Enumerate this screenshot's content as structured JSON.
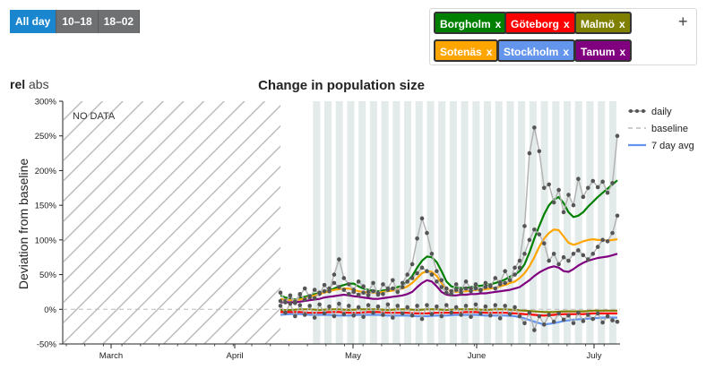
{
  "time_filters": {
    "buttons": [
      {
        "label": "All day",
        "active": true
      },
      {
        "label": "10–18",
        "active": false
      },
      {
        "label": "18–02",
        "active": false
      }
    ]
  },
  "locations": {
    "tags": [
      {
        "label": "Borgholm",
        "remove": "x",
        "color": "#008000"
      },
      {
        "label": "Göteborg",
        "remove": "x",
        "color": "#ff0000"
      },
      {
        "label": "Malmö",
        "remove": "x",
        "color": "#808000"
      },
      {
        "label": "Sotenäs",
        "remove": "x",
        "color": "#ffa500"
      },
      {
        "label": "Stockholm",
        "remove": "x",
        "color": "#6495ed"
      },
      {
        "label": "Tanum",
        "remove": "x",
        "color": "#800080"
      }
    ],
    "add_icon": "+"
  },
  "mode_toggle": {
    "rel": "rel",
    "abs": "abs"
  },
  "chart_data": {
    "type": "line",
    "title": "Change in population size",
    "ylabel": "Deviation from baseline",
    "xlabel": "",
    "ylim": [
      -50,
      300
    ],
    "yticks": [
      "-50%",
      "0%",
      "50%",
      "100%",
      "150%",
      "200%",
      "250%",
      "300%"
    ],
    "x_ticks": [
      "March",
      "April",
      "May",
      "June",
      "July"
    ],
    "no_data_label": "NO DATA",
    "legend": {
      "daily": "daily",
      "baseline": "baseline",
      "avg": "7 day avg"
    },
    "series": [
      {
        "name": "Borgholm",
        "color": "#008000",
        "x": [
          0,
          3,
          6,
          9,
          12,
          15,
          18,
          21,
          24,
          27,
          30,
          33,
          36,
          39,
          42,
          45,
          48,
          51,
          54,
          57,
          60,
          63,
          66,
          69,
          72,
          75,
          78,
          81,
          84,
          87,
          90,
          93,
          96,
          99,
          102,
          105,
          108,
          111,
          114,
          117,
          120,
          123,
          126,
          129,
          132,
          135,
          138,
          141,
          144,
          147,
          150,
          153,
          156,
          159,
          162,
          165,
          168,
          171,
          174,
          177,
          180,
          183,
          186,
          189,
          192,
          195,
          198,
          201,
          204,
          207
        ],
        "values": [
          20,
          17,
          15,
          14,
          16,
          18,
          20,
          22,
          23,
          25,
          27,
          30,
          33,
          35,
          37,
          37,
          33,
          30,
          28,
          27,
          26,
          27,
          28,
          30,
          32,
          34,
          40,
          48,
          60,
          70,
          76,
          75,
          68,
          55,
          40,
          33,
          31,
          31,
          31,
          32,
          33,
          34,
          35,
          36,
          38,
          40,
          43,
          47,
          50,
          55,
          65,
          82,
          102,
          120,
          137,
          150,
          158,
          162,
          153,
          140,
          133,
          135,
          140,
          148,
          155,
          162,
          168,
          174,
          180,
          186
        ]
      },
      {
        "name": "Sotenäs",
        "color": "#ffa500",
        "x": [
          0,
          3,
          6,
          9,
          12,
          15,
          18,
          21,
          24,
          27,
          30,
          33,
          36,
          39,
          42,
          45,
          48,
          51,
          54,
          57,
          60,
          63,
          66,
          69,
          72,
          75,
          78,
          81,
          84,
          87,
          90,
          93,
          96,
          99,
          102,
          105,
          108,
          111,
          114,
          117,
          120,
          123,
          126,
          129,
          132,
          135,
          138,
          141,
          144,
          147,
          150,
          153,
          156,
          159,
          162,
          165,
          168,
          171,
          174,
          177,
          180,
          183,
          186,
          189,
          192,
          195,
          198,
          201,
          204,
          207
        ],
        "values": [
          15,
          14,
          13,
          13,
          14,
          16,
          18,
          20,
          22,
          24,
          26,
          28,
          29,
          30,
          30,
          28,
          26,
          25,
          24,
          24,
          24,
          25,
          26,
          27,
          28,
          30,
          33,
          38,
          45,
          52,
          55,
          54,
          48,
          38,
          30,
          26,
          25,
          26,
          26,
          27,
          28,
          28,
          29,
          30,
          31,
          33,
          35,
          38,
          40,
          45,
          52,
          62,
          75,
          90,
          102,
          110,
          115,
          114,
          105,
          96,
          93,
          95,
          98,
          100,
          101,
          100,
          100,
          99,
          100,
          101
        ]
      },
      {
        "name": "Tanum",
        "color": "#800080",
        "x": [
          0,
          3,
          6,
          9,
          12,
          15,
          18,
          21,
          24,
          27,
          30,
          33,
          36,
          39,
          42,
          45,
          48,
          51,
          54,
          57,
          60,
          63,
          66,
          69,
          72,
          75,
          78,
          81,
          84,
          87,
          90,
          93,
          96,
          99,
          102,
          105,
          108,
          111,
          114,
          117,
          120,
          123,
          126,
          129,
          132,
          135,
          138,
          141,
          144,
          147,
          150,
          153,
          156,
          159,
          162,
          165,
          168,
          171,
          174,
          177,
          180,
          183,
          186,
          189,
          192,
          195,
          198,
          201,
          204,
          207
        ],
        "values": [
          10,
          10,
          10,
          10,
          11,
          12,
          13,
          14,
          15,
          17,
          18,
          19,
          20,
          21,
          20,
          19,
          18,
          17,
          16,
          15,
          15,
          16,
          17,
          18,
          19,
          20,
          22,
          25,
          32,
          38,
          42,
          40,
          33,
          25,
          21,
          20,
          20,
          21,
          21,
          22,
          22,
          23,
          23,
          24,
          25,
          26,
          27,
          28,
          30,
          32,
          37,
          42,
          48,
          53,
          57,
          60,
          62,
          60,
          55,
          54,
          58,
          63,
          67,
          70,
          72,
          74,
          75,
          76,
          78,
          80
        ]
      },
      {
        "name": "Malmö",
        "color": "#808000",
        "x": [
          0,
          6,
          12,
          18,
          24,
          30,
          36,
          42,
          48,
          54,
          60,
          66,
          72,
          78,
          84,
          90,
          96,
          102,
          108,
          114,
          120,
          126,
          132,
          138,
          144,
          150,
          156,
          162,
          168,
          174,
          180,
          186,
          192,
          198,
          204,
          207
        ],
        "values": [
          -1,
          -1,
          0,
          0,
          -1,
          0,
          0,
          -1,
          0,
          0,
          0,
          -1,
          0,
          0,
          -1,
          0,
          0,
          -1,
          0,
          0,
          0,
          -1,
          0,
          0,
          -1,
          -2,
          -3,
          -4,
          -4,
          -3,
          -3,
          -3,
          -2,
          -2,
          -2,
          -2
        ]
      },
      {
        "name": "Göteborg",
        "color": "#ff0000",
        "x": [
          0,
          6,
          12,
          18,
          24,
          30,
          36,
          42,
          48,
          54,
          60,
          66,
          72,
          78,
          84,
          90,
          96,
          102,
          108,
          114,
          120,
          126,
          132,
          138,
          144,
          150,
          156,
          162,
          168,
          174,
          180,
          186,
          192,
          198,
          204,
          207
        ],
        "values": [
          -4,
          -4,
          -4,
          -5,
          -5,
          -4,
          -4,
          -5,
          -5,
          -4,
          -4,
          -5,
          -5,
          -5,
          -6,
          -6,
          -5,
          -5,
          -5,
          -4,
          -4,
          -5,
          -5,
          -5,
          -6,
          -7,
          -8,
          -9,
          -8,
          -7,
          -7,
          -7,
          -6,
          -6,
          -6,
          -6
        ]
      },
      {
        "name": "Stockholm",
        "color": "#6495ed",
        "x": [
          0,
          6,
          12,
          18,
          24,
          30,
          36,
          42,
          48,
          54,
          60,
          66,
          72,
          78,
          84,
          90,
          96,
          102,
          108,
          114,
          120,
          126,
          132,
          138,
          144,
          150,
          156,
          162,
          168,
          174,
          180,
          186,
          192,
          198,
          204,
          207
        ],
        "values": [
          -8,
          -7,
          -7,
          -8,
          -8,
          -8,
          -9,
          -9,
          -8,
          -8,
          -8,
          -9,
          -9,
          -9,
          -10,
          -10,
          -9,
          -9,
          -8,
          -8,
          -8,
          -9,
          -9,
          -9,
          -10,
          -13,
          -18,
          -22,
          -20,
          -17,
          -15,
          -14,
          -13,
          -12,
          -12,
          -12
        ]
      },
      {
        "name": "daily",
        "color": "#555555",
        "x": [
          0,
          3,
          6,
          9,
          12,
          15,
          18,
          21,
          24,
          27,
          30,
          33,
          36,
          39,
          42,
          45,
          48,
          51,
          54,
          57,
          60,
          63,
          66,
          69,
          72,
          75,
          78,
          81,
          84,
          87,
          90,
          93,
          96,
          99,
          102,
          105,
          108,
          111,
          114,
          117,
          120,
          123,
          126,
          129,
          132,
          135,
          138,
          141,
          144,
          147,
          150,
          153,
          156,
          159,
          162,
          165,
          168,
          171,
          174,
          177,
          180,
          183,
          186,
          189,
          192,
          195,
          198,
          201,
          204,
          207
        ],
        "values": [
          24,
          12,
          18,
          9,
          20,
          30,
          17,
          28,
          22,
          35,
          26,
          50,
          72,
          45,
          36,
          28,
          40,
          33,
          25,
          38,
          21,
          36,
          30,
          42,
          25,
          38,
          50,
          65,
          102,
          131,
          110,
          80,
          55,
          42,
          30,
          26,
          36,
          28,
          40,
          30,
          36,
          27,
          38,
          33,
          45,
          39,
          55,
          42,
          60,
          70,
          120,
          225,
          262,
          228,
          175,
          180,
          154,
          172,
          140,
          165,
          150,
          188,
          162,
          175,
          185,
          176,
          184,
          168,
          182,
          250
        ]
      },
      {
        "name": "daily",
        "color": "#555555",
        "x": [
          0,
          3,
          6,
          9,
          12,
          15,
          18,
          21,
          24,
          27,
          30,
          33,
          36,
          39,
          42,
          45,
          48,
          51,
          54,
          57,
          60,
          63,
          66,
          69,
          72,
          75,
          78,
          81,
          84,
          87,
          90,
          93,
          96,
          99,
          102,
          105,
          108,
          111,
          114,
          117,
          120,
          123,
          126,
          129,
          132,
          135,
          138,
          141,
          144,
          147,
          150,
          153,
          156,
          159,
          162,
          165,
          168,
          171,
          174,
          177,
          180,
          183,
          186,
          189,
          192,
          195,
          198,
          201,
          204,
          207
        ],
        "values": [
          5,
          -5,
          8,
          -10,
          6,
          -8,
          5,
          -12,
          7,
          -6,
          4,
          -10,
          8,
          -7,
          5,
          -9,
          3,
          -11,
          6,
          -5,
          4,
          -8,
          7,
          -12,
          5,
          -6,
          3,
          -9,
          5,
          -14,
          6,
          -7,
          4,
          -10,
          6,
          -5,
          3,
          -8,
          5,
          -11,
          7,
          -6,
          4,
          -9,
          6,
          -13,
          5,
          -7,
          3,
          -10,
          -20,
          -5,
          -30,
          -10,
          -22,
          -8,
          -18,
          -6,
          -15,
          -9,
          -20,
          -5,
          -17,
          -8,
          -14,
          -6,
          -19,
          -10,
          -16,
          -18
        ]
      },
      {
        "name": "daily",
        "color": "#555555",
        "x": [
          0,
          3,
          6,
          9,
          12,
          15,
          18,
          21,
          24,
          27,
          30,
          33,
          36,
          39,
          42,
          45,
          48,
          51,
          54,
          57,
          60,
          63,
          66,
          69,
          72,
          75,
          78,
          81,
          84,
          87,
          90,
          93,
          96,
          99,
          102,
          105,
          108,
          111,
          114,
          117,
          120,
          123,
          126,
          129,
          132,
          135,
          138,
          141,
          144,
          147,
          150,
          153,
          156,
          159,
          162,
          165,
          168,
          171,
          174,
          177,
          180,
          183,
          186,
          189,
          192,
          195,
          198,
          201,
          204,
          207
        ],
        "values": [
          12,
          10,
          20,
          11,
          22,
          14,
          19,
          16,
          24,
          26,
          30,
          38,
          32,
          28,
          22,
          25,
          21,
          24,
          20,
          26,
          23,
          22,
          28,
          30,
          25,
          32,
          40,
          45,
          52,
          60,
          55,
          50,
          40,
          32,
          24,
          22,
          28,
          24,
          30,
          26,
          30,
          28,
          32,
          34,
          30,
          36,
          38,
          42,
          50,
          60,
          80,
          100,
          115,
          108,
          95,
          70,
          80,
          65,
          75,
          70,
          80,
          85,
          78,
          72,
          80,
          90,
          100,
          98,
          110,
          135
        ]
      }
    ]
  }
}
